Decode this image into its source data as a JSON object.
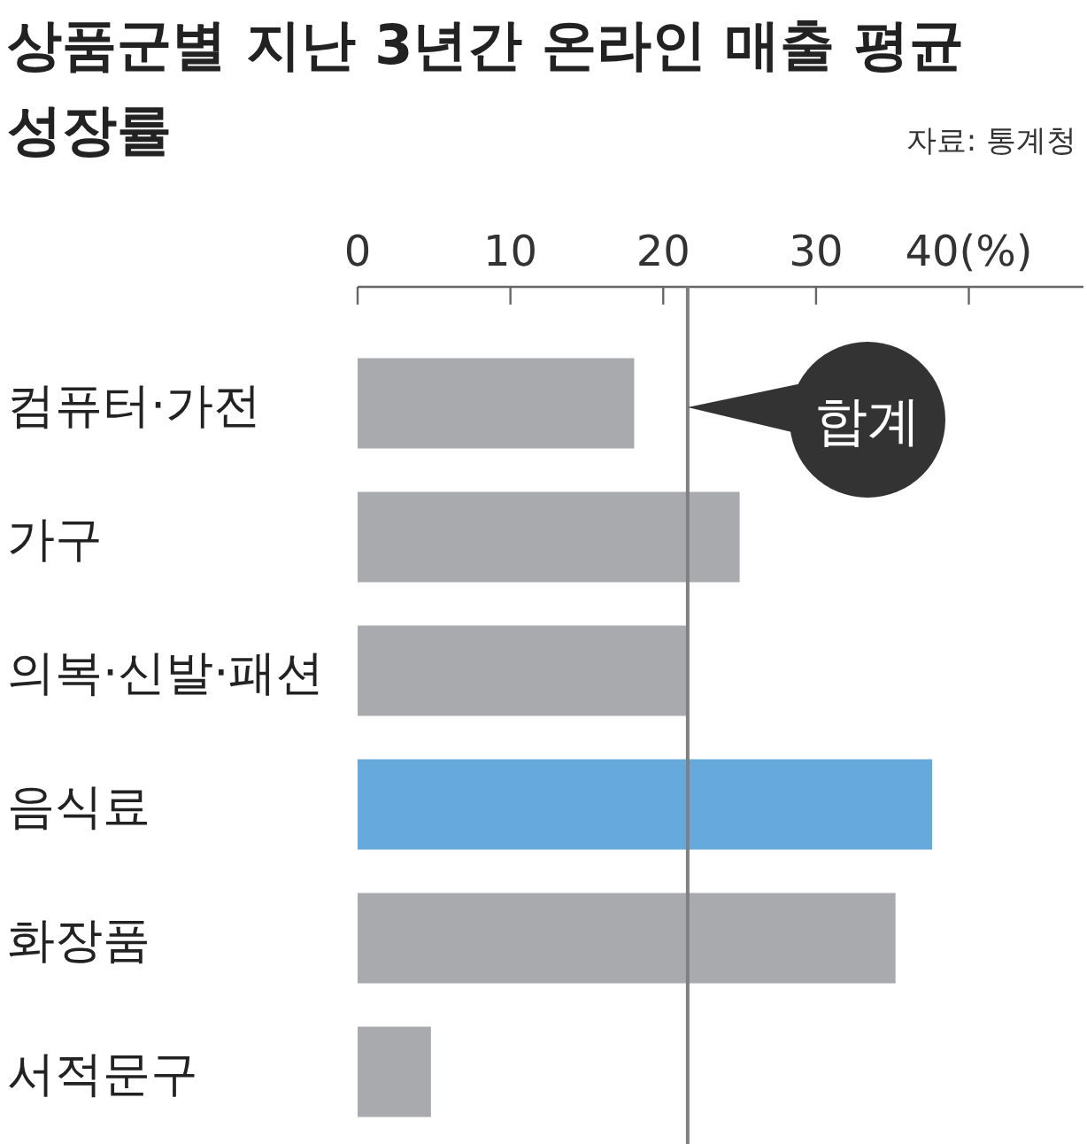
{
  "chart_data": {
    "type": "bar",
    "orientation": "horizontal",
    "title": "상품군별 지난 3년간 온라인 매출 평균 성장률",
    "annotations": [
      "자료: 통계청"
    ],
    "categories": [
      "컴퓨터·가전",
      "가구",
      "의복·신발·패션",
      "음식료",
      "화장품",
      "서적문구"
    ],
    "values": [
      18.1,
      25.0,
      21.6,
      37.6,
      35.2,
      4.8
    ],
    "colors": [
      "#a9aaad",
      "#a9aaad",
      "#a9aaad",
      "#66aadd",
      "#a9aaad",
      "#a9aaad"
    ],
    "xlim": [
      0,
      47.5
    ],
    "xticks": [
      0,
      10,
      20,
      30,
      {
        "value": 40,
        "label": "40(%)"
      }
    ],
    "ref_lines": [
      {
        "axis": "x",
        "value": 21.6,
        "label": "합계",
        "color": "#808080"
      }
    ]
  }
}
